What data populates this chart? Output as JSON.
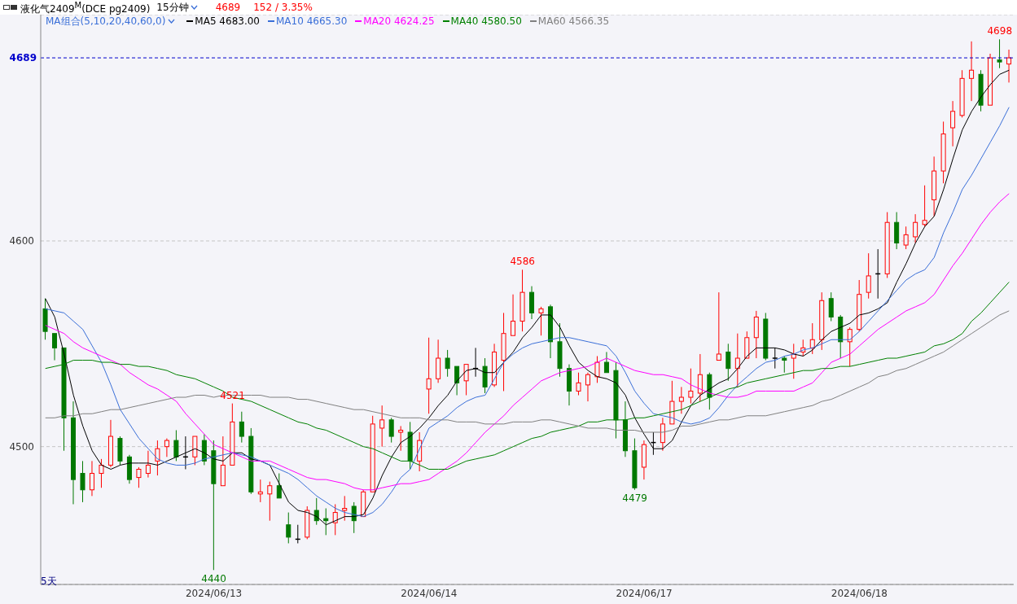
{
  "chart_data": {
    "type": "candlestick",
    "title": "液化气2409$^{M}$(DCE pg2409)",
    "subtitle": "15分钟",
    "legend_title": "MA组合(5,10,20,40,60,0)",
    "legend": "top left",
    "grid": "y",
    "marker": "none",
    "line_style": "solid",
    "annotations": [
      "4689",
      "152 / 3.35%",
      "5天",
      {
        "text": "4698",
        "y": 4698
      },
      {
        "text": "4586",
        "y": 4586
      },
      {
        "text": "4521",
        "y": 4521
      },
      {
        "text": "4479",
        "y": 4479
      },
      {
        "text": "4440",
        "y": 4440
      }
    ],
    "ylim": [
      4433,
      4710
    ],
    "yticks": [
      4500,
      4600
    ],
    "ref_lines": [
      {
        "axis": "y",
        "value": 4689,
        "label": "4689",
        "color": "#0000cc",
        "line_style": "dashed"
      }
    ],
    "categories": [
      null,
      null,
      null,
      null,
      null,
      null,
      null,
      null,
      null,
      null,
      null,
      null,
      null,
      null,
      null,
      null,
      null,
      null,
      "2024/06/13",
      null,
      null,
      null,
      null,
      null,
      null,
      null,
      null,
      null,
      null,
      null,
      null,
      null,
      null,
      null,
      null,
      null,
      null,
      null,
      null,
      null,
      null,
      "2024/06/14",
      null,
      null,
      null,
      null,
      null,
      null,
      null,
      null,
      null,
      null,
      null,
      null,
      null,
      null,
      null,
      null,
      null,
      null,
      null,
      null,
      null,
      null,
      "2024/06/17",
      null,
      null,
      null,
      null,
      null,
      null,
      null,
      null,
      null,
      null,
      null,
      null,
      null,
      null,
      null,
      null,
      null,
      null,
      null,
      null,
      null,
      null,
      "2024/06/18",
      null,
      null,
      null,
      null,
      null,
      null,
      null,
      null,
      null,
      null,
      null,
      null,
      null,
      null,
      null,
      null
    ],
    "ohlc": [
      [
        4567,
        4572,
        4552,
        4556
      ],
      [
        4555,
        4555,
        4542,
        4548
      ],
      [
        4548,
        4548,
        4498,
        4514
      ],
      [
        4514,
        4522,
        4472,
        4484
      ],
      [
        4487,
        4493,
        4473,
        4479
      ],
      [
        4479,
        4493,
        4476,
        4487
      ],
      [
        4487,
        4494,
        4480,
        4491
      ],
      [
        4491,
        4513,
        4490,
        4505
      ],
      [
        4504,
        4505,
        4491,
        4493
      ],
      [
        4495,
        4496,
        4482,
        4484
      ],
      [
        4485,
        4490,
        4480,
        4489
      ],
      [
        4487,
        4498,
        4485,
        4491
      ],
      [
        4493,
        4503,
        4486,
        4499
      ],
      [
        4500,
        4504,
        4495,
        4503
      ],
      [
        4503,
        4508,
        4493,
        4495
      ],
      [
        4495,
        4505,
        4489,
        4495
      ],
      [
        4495,
        4505,
        4491,
        4505
      ],
      [
        4503,
        4506,
        4491,
        4493
      ],
      [
        4498,
        4503,
        4440,
        4482
      ],
      [
        4481,
        4505,
        4481,
        4491
      ],
      [
        4491,
        4521,
        4491,
        4512
      ],
      [
        4512,
        4517,
        4502,
        4505
      ],
      [
        4505,
        4509,
        4477,
        4478
      ],
      [
        4477,
        4484,
        4473,
        4478
      ],
      [
        4477,
        4483,
        4464,
        4481
      ],
      [
        4481,
        4487,
        4475,
        4475
      ],
      [
        4462,
        4468,
        4453,
        4456
      ],
      [
        4455,
        4462,
        4453,
        4455
      ],
      [
        4456,
        4471,
        4455,
        4469
      ],
      [
        4469,
        4475,
        4462,
        4464
      ],
      [
        4465,
        4470,
        4457,
        4464
      ],
      [
        4463,
        4472,
        4457,
        4468
      ],
      [
        4469,
        4476,
        4464,
        4470
      ],
      [
        4471,
        4473,
        4458,
        4464
      ],
      [
        4466,
        4479,
        4466,
        4478
      ],
      [
        4478,
        4515,
        4478,
        4511
      ],
      [
        4509,
        4520,
        4500,
        4513
      ],
      [
        4513,
        4514,
        4502,
        4505
      ],
      [
        4507,
        4510,
        4498,
        4508
      ],
      [
        4507,
        4512,
        4489,
        4493
      ],
      [
        4493,
        4507,
        4488,
        4503
      ],
      [
        4528,
        4553,
        4516,
        4533
      ],
      [
        4533,
        4552,
        4531,
        4543
      ],
      [
        4543,
        4547,
        4534,
        4538
      ],
      [
        4539,
        4539,
        4525,
        4531
      ],
      [
        4532,
        4540,
        4525,
        4540
      ],
      [
        4538,
        4548,
        4534,
        4538
      ],
      [
        4539,
        4543,
        4526,
        4529
      ],
      [
        4530,
        4550,
        4529,
        4546
      ],
      [
        4542,
        4565,
        4527,
        4555
      ],
      [
        4554,
        4574,
        4554,
        4561
      ],
      [
        4561,
        4586,
        4556,
        4575
      ],
      [
        4575,
        4578,
        4562,
        4565
      ],
      [
        4565,
        4568,
        4554,
        4567
      ],
      [
        4568,
        4569,
        4543,
        4551
      ],
      [
        4551,
        4560,
        4534,
        4538
      ],
      [
        4538,
        4540,
        4520,
        4527
      ],
      [
        4527,
        4536,
        4525,
        4531
      ],
      [
        4530,
        4536,
        4522,
        4535
      ],
      [
        4534,
        4544,
        4531,
        4541
      ],
      [
        4541,
        4546,
        4536,
        4536
      ],
      [
        4537,
        4541,
        4504,
        4513
      ],
      [
        4513,
        4522,
        4495,
        4498
      ],
      [
        4498,
        4504,
        4479,
        4480
      ],
      [
        4490,
        4503,
        4484,
        4501
      ],
      [
        4502,
        4507,
        4496,
        4502
      ],
      [
        4502,
        4514,
        4498,
        4511
      ],
      [
        4511,
        4532,
        4511,
        4522
      ],
      [
        4522,
        4529,
        4516,
        4524
      ],
      [
        4524,
        4538,
        4521,
        4527
      ],
      [
        4526,
        4545,
        4522,
        4535
      ],
      [
        4535,
        4536,
        4518,
        4524
      ],
      [
        4542,
        4575,
        4542,
        4545
      ],
      [
        4546,
        4550,
        4532,
        4538
      ],
      [
        4538,
        4555,
        4529,
        4543
      ],
      [
        4543,
        4556,
        4543,
        4553
      ],
      [
        4553,
        4566,
        4543,
        4563
      ],
      [
        4562,
        4565,
        4542,
        4543
      ],
      [
        4543,
        4548,
        4538,
        4543
      ],
      [
        4543,
        4544,
        4536,
        4542
      ],
      [
        4543,
        4550,
        4533,
        4545
      ],
      [
        4546,
        4552,
        4544,
        4548
      ],
      [
        4548,
        4560,
        4545,
        4552
      ],
      [
        4552,
        4575,
        4547,
        4571
      ],
      [
        4572,
        4575,
        4561,
        4563
      ],
      [
        4563,
        4564,
        4543,
        4551
      ],
      [
        4551,
        4558,
        4539,
        4557
      ],
      [
        4557,
        4581,
        4556,
        4574
      ],
      [
        4575,
        4594,
        4572,
        4583
      ],
      [
        4584,
        4596,
        4572,
        4584
      ],
      [
        4584,
        4614,
        4582,
        4609
      ],
      [
        4609,
        4614,
        4596,
        4599
      ],
      [
        4598,
        4607,
        4596,
        4603
      ],
      [
        4602,
        4613,
        4599,
        4609
      ],
      [
        4608,
        4627,
        4607,
        4610
      ],
      [
        4620,
        4641,
        4612,
        4634
      ],
      [
        4634,
        4658,
        4628,
        4652
      ],
      [
        4655,
        4668,
        4646,
        4663
      ],
      [
        4661,
        4683,
        4660,
        4679
      ],
      [
        4679,
        4697,
        4668,
        4683
      ],
      [
        4681,
        4683,
        4663,
        4666
      ],
      [
        4666,
        4691,
        4666,
        4689
      ],
      [
        4688,
        4698,
        4684,
        4687
      ],
      [
        4686,
        4693,
        4677,
        4689
      ]
    ],
    "colors": [
      "#007800",
      "#007800",
      "#007800",
      "#007800",
      "#007800",
      "#ff0000",
      "#ff0000",
      "#ff0000",
      "#007800",
      "#007800",
      "#ff0000",
      "#ff0000",
      "#ff0000",
      "#ff0000",
      "#007800",
      "#000000",
      "#ff0000",
      "#007800",
      "#007800",
      "#ff0000",
      "#ff0000",
      "#007800",
      "#007800",
      "#ff0000",
      "#ff0000",
      "#007800",
      "#007800",
      "#000000",
      "#ff0000",
      "#007800",
      "#007800",
      "#ff0000",
      "#ff0000",
      "#007800",
      "#ff0000",
      "#ff0000",
      "#ff0000",
      "#007800",
      "#ff0000",
      "#007800",
      "#ff0000",
      "#ff0000",
      "#ff0000",
      "#007800",
      "#007800",
      "#ff0000",
      "#000000",
      "#007800",
      "#ff0000",
      "#ff0000",
      "#ff0000",
      "#ff0000",
      "#007800",
      "#ff0000",
      "#007800",
      "#007800",
      "#007800",
      "#ff0000",
      "#ff0000",
      "#ff0000",
      "#007800",
      "#007800",
      "#007800",
      "#007800",
      "#ff0000",
      "#000000",
      "#ff0000",
      "#ff0000",
      "#ff0000",
      "#ff0000",
      "#ff0000",
      "#007800",
      "#ff0000",
      "#007800",
      "#ff0000",
      "#ff0000",
      "#ff0000",
      "#007800",
      "#000000",
      "#007800",
      "#ff0000",
      "#ff0000",
      "#ff0000",
      "#ff0000",
      "#007800",
      "#007800",
      "#ff0000",
      "#ff0000",
      "#ff0000",
      "#000000",
      "#ff0000",
      "#007800",
      "#ff0000",
      "#ff0000",
      "#ff0000",
      "#ff0000",
      "#ff0000",
      "#ff0000",
      "#ff0000",
      "#ff0000",
      "#007800",
      "#ff0000",
      "#007800",
      "#ff0000"
    ],
    "series": [
      {
        "name": "MA5 4683.00",
        "type": "line",
        "color": "#000000",
        "values": [
          4572,
          4563,
          4545,
          4525,
          4510,
          4498,
          4491,
          4489,
          4491,
          4492,
          4492,
          4492,
          4491,
          4493,
          4495,
          4497,
          4499,
          4497,
          4494,
          4493,
          4497,
          4497,
          4494,
          4493,
          4491,
          4482,
          4473,
          4469,
          4468,
          4466,
          4462,
          4464,
          4466,
          4466,
          4467,
          4475,
          4486,
          4495,
          4502,
          4505,
          4509,
          4514,
          4520,
          4525,
          4532,
          4537,
          4538,
          4536,
          4536,
          4541,
          4546,
          4553,
          4558,
          4564,
          4564,
          4558,
          4549,
          4541,
          4537,
          4534,
          4533,
          4531,
          4525,
          4514,
          4506,
          4499,
          4499,
          4503,
          4512,
          4520,
          4525,
          4528,
          4531,
          4533,
          4538,
          4544,
          4548,
          4548,
          4548,
          4547,
          4545,
          4544,
          4547,
          4552,
          4556,
          4558,
          4560,
          4564,
          4565,
          4567,
          4570,
          4580,
          4589,
          4599,
          4607,
          4612,
          4625,
          4640,
          4654,
          4663,
          4670,
          4676,
          4681,
          4683
        ]
      },
      {
        "name": "MA10 4665.30",
        "type": "line",
        "color": "#3a6fd8",
        "values": [
          4567,
          4566,
          4565,
          4561,
          4557,
          4549,
          4541,
          4530,
          4518,
          4511,
          4504,
          4499,
          4494,
          4492,
          4491,
          4491,
          4492,
          4494,
          4495,
          4496,
          4497,
          4496,
          4495,
          4493,
          4491,
          4489,
          4487,
          4484,
          4480,
          4476,
          4473,
          4470,
          4468,
          4467,
          4466,
          4468,
          4472,
          4478,
          4485,
          4489,
          4499,
          4509,
          4512,
          4515,
          4519,
          4522,
          4524,
          4525,
          4533,
          4541,
          4545,
          4548,
          4550,
          4551,
          4552,
          4553,
          4553,
          4552,
          4551,
          4550,
          4549,
          4544,
          4536,
          4527,
          4521,
          4516,
          4515,
          4514,
          4512,
          4511,
          4512,
          4514,
          4519,
          4525,
          4530,
          4534,
          4538,
          4541,
          4542,
          4544,
          4545,
          4547,
          4548,
          4550,
          4552,
          4552,
          4552,
          4556,
          4561,
          4566,
          4571,
          4576,
          4581,
          4584,
          4586,
          4592,
          4604,
          4614,
          4625,
          4632,
          4640,
          4648,
          4656,
          4665
        ]
      },
      {
        "name": "MA20 4624.25",
        "type": "line",
        "color": "#ff00ff",
        "values": [
          4559,
          4557,
          4555,
          4551,
          4548,
          4546,
          4544,
          4542,
          4540,
          4536,
          4533,
          4530,
          4528,
          4525,
          4522,
          4516,
          4511,
          4506,
          4501,
          4499,
          4497,
          4495,
          4493,
          4493,
          4493,
          4491,
          4489,
          4487,
          4485,
          4484,
          4484,
          4483,
          4482,
          4480,
          4479,
          4479,
          4480,
          4481,
          4482,
          4482,
          4483,
          4484,
          4487,
          4490,
          4493,
          4497,
          4502,
          4507,
          4511,
          4515,
          4520,
          4524,
          4528,
          4532,
          4534,
          4536,
          4537,
          4538,
          4539,
          4541,
          4543,
          4541,
          4539,
          4537,
          4536,
          4535,
          4535,
          4534,
          4533,
          4530,
          4528,
          4526,
          4525,
          4524,
          4524,
          4525,
          4527,
          4527,
          4527,
          4527,
          4527,
          4529,
          4531,
          4536,
          4541,
          4543,
          4545,
          4549,
          4553,
          4557,
          4560,
          4563,
          4566,
          4568,
          4570,
          4574,
          4581,
          4588,
          4594,
          4601,
          4608,
          4614,
          4619,
          4623
        ]
      },
      {
        "name": "MA40 4580.50",
        "type": "line",
        "color": "#008000",
        "values": [
          4538,
          4539,
          4540,
          4542,
          4542,
          4542,
          4541,
          4541,
          4540,
          4540,
          4539,
          4539,
          4538,
          4537,
          4535,
          4534,
          4533,
          4531,
          4529,
          4527,
          4524,
          4523,
          4522,
          4520,
          4518,
          4516,
          4514,
          4512,
          4511,
          4509,
          4508,
          4506,
          4504,
          4502,
          4500,
          4499,
          4497,
          4495,
          4493,
          4493,
          4491,
          4489,
          4489,
          4489,
          4491,
          4493,
          4494,
          4495,
          4496,
          4498,
          4500,
          4502,
          4504,
          4505,
          4507,
          4508,
          4509,
          4510,
          4512,
          4512,
          4513,
          4513,
          4513,
          4514,
          4514,
          4515,
          4516,
          4517,
          4518,
          4520,
          4522,
          4524,
          4526,
          4528,
          4529,
          4531,
          4532,
          4533,
          4534,
          4535,
          4536,
          4537,
          4537,
          4538,
          4538,
          4539,
          4539,
          4540,
          4541,
          4542,
          4543,
          4543,
          4544,
          4545,
          4546,
          4549,
          4550,
          4552,
          4555,
          4561,
          4565,
          4570,
          4575,
          4580
        ]
      },
      {
        "name": "MA60 4566.35",
        "type": "line",
        "color": "#808080",
        "values": [
          4514,
          4514,
          4515,
          4515,
          4516,
          4516,
          4517,
          4518,
          4518,
          4519,
          4520,
          4521,
          4522,
          4523,
          4524,
          4524,
          4525,
          4525,
          4524,
          4525,
          4525,
          4525,
          4525,
          4525,
          4524,
          4524,
          4524,
          4523,
          4523,
          4522,
          4521,
          4520,
          4519,
          4518,
          4518,
          4517,
          4516,
          4515,
          4514,
          4514,
          4514,
          4513,
          4513,
          4513,
          4512,
          4512,
          4512,
          4511,
          4511,
          4511,
          4512,
          4512,
          4512,
          4513,
          4513,
          4512,
          4511,
          4510,
          4509,
          4509,
          4509,
          4508,
          4508,
          4508,
          4507,
          4507,
          4507,
          4508,
          4510,
          4510,
          4511,
          4512,
          4513,
          4513,
          4514,
          4515,
          4515,
          4515,
          4516,
          4517,
          4518,
          4519,
          4520,
          4522,
          4523,
          4525,
          4527,
          4529,
          4531,
          4534,
          4535,
          4537,
          4538,
          4540,
          4542,
          4544,
          4546,
          4549,
          4552,
          4555,
          4558,
          4561,
          4564,
          4566
        ]
      }
    ]
  }
}
